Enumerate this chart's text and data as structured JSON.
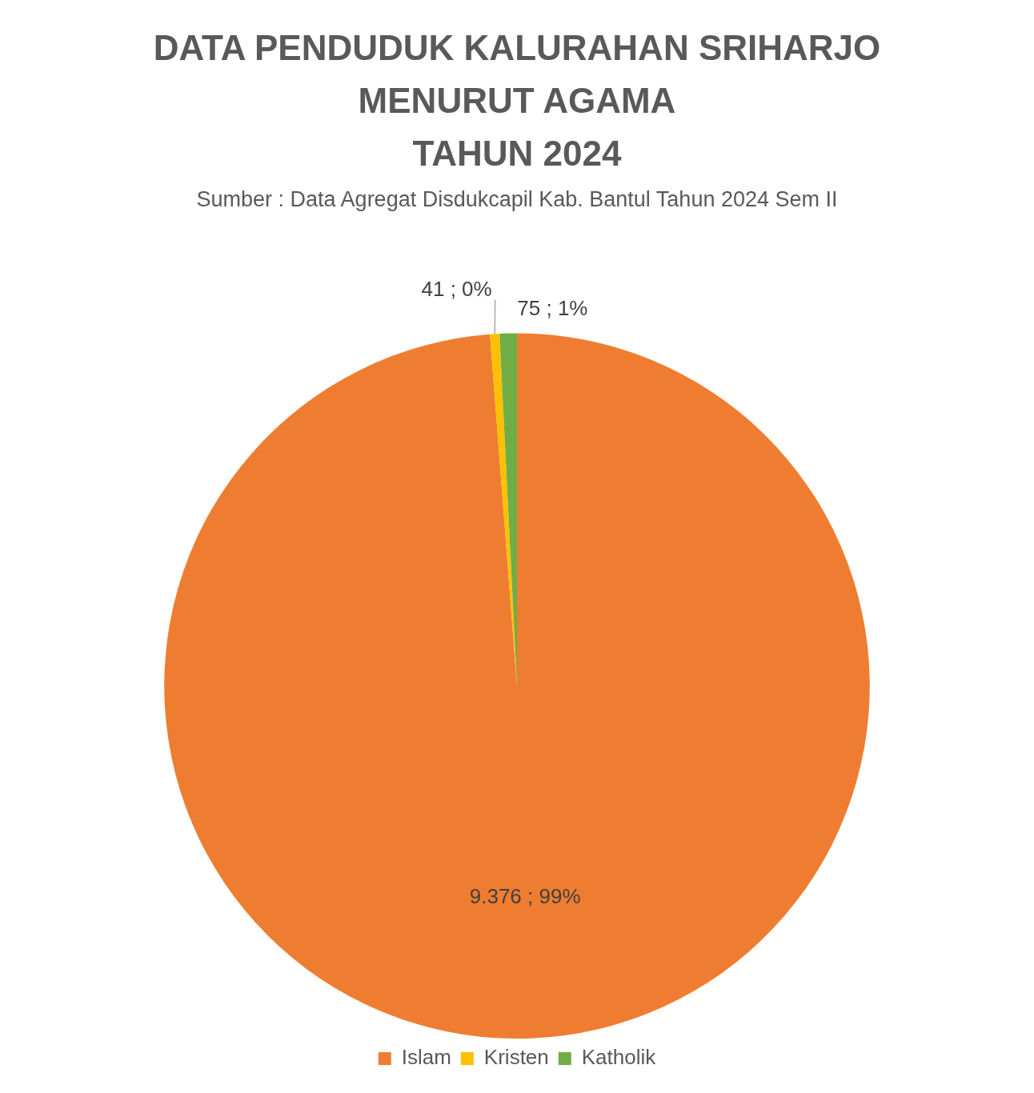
{
  "chart_data": {
    "type": "pie",
    "title": "DATA PENDUDUK KALURAHAN SRIHARJO\nMENURUT AGAMA\nTAHUN 2024",
    "subtitle": "Sumber : Data Agregat Disdukcapil Kab. Bantul Tahun 2024 Sem II",
    "categories": [
      "Islam",
      "Kristen",
      "Katholik"
    ],
    "values": [
      9376,
      41,
      75
    ],
    "value_labels": [
      "9.376 ; 99%",
      "41 ; 0%",
      "75 ; 1%"
    ],
    "colors": [
      "#ef7d31",
      "#ffc000",
      "#70ad47"
    ],
    "legend": "bottom"
  }
}
